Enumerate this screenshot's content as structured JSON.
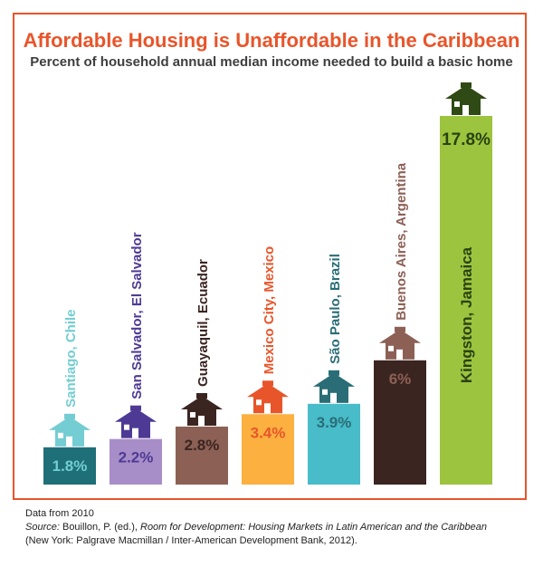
{
  "title": "Affordable Housing is Unaffordable in the Caribbean",
  "subtitle": "Percent of household annual median income needed to build a basic home",
  "chart_data": {
    "type": "bar",
    "title": "Affordable Housing is Unaffordable in the Caribbean",
    "subtitle": "Percent of household annual median income needed to build a basic home",
    "categories": [
      "Santiago, Chile",
      "San Salvador, El Salvador",
      "Guayaquil, Ecuador",
      "Mexico City, Mexico",
      "São Paulo, Brazil",
      "Buenos Aires, Argentina",
      "Kingston, Jamaica"
    ],
    "values": [
      1.8,
      2.2,
      2.8,
      3.4,
      3.9,
      6,
      17.8
    ],
    "value_labels": [
      "1.8%",
      "2.2%",
      "2.8%",
      "3.4%",
      "3.9%",
      "6%",
      "17.8%"
    ],
    "bar_colors": [
      "#1f6f78",
      "#a88ec8",
      "#8c6055",
      "#fbb040",
      "#48bcc9",
      "#3b2521",
      "#9cc43e"
    ],
    "icon_colors": [
      "#73cdd2",
      "#4e3a94",
      "#3b2521",
      "#e8552a",
      "#2a6d77",
      "#8c6055",
      "#2f4a14"
    ],
    "label_colors": [
      "#73cdd2",
      "#4e3a94",
      "#3b2521",
      "#e8552a",
      "#2a6d77",
      "#8c6055",
      "#2a4212"
    ],
    "value_label_colors": [
      "#73cdd2",
      "#4e3a94",
      "#3b2521",
      "#e8552a",
      "#2a6d77",
      "#8c6055",
      "#2a4212"
    ],
    "icon": "house-icon",
    "grid": false,
    "legend": "none"
  },
  "notes": {
    "data_year": "Data from 2010",
    "source_label": "Source:",
    "source_author": " Bouillon, P. (ed.), ",
    "source_title": "Room for Development: Housing Markets in Latin American and the Caribbean",
    "publisher": "(New York: Palgrave Macmillan / Inter-American Development Bank, 2012)."
  }
}
